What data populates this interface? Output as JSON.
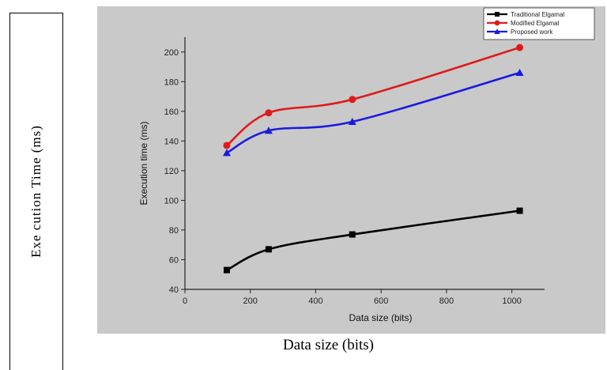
{
  "outer": {
    "left_label": "Exe cution Time (ms)",
    "bottom_label": "Data size (bits)"
  },
  "chart_data": {
    "type": "line",
    "xlabel": "Data size (bits)",
    "ylabel": "Execution time (ms)",
    "xlim": [
      0,
      1100
    ],
    "ylim": [
      40,
      210
    ],
    "xticks": [
      0,
      200,
      400,
      600,
      800,
      1000
    ],
    "yticks": [
      40,
      60,
      80,
      100,
      120,
      140,
      160,
      180,
      200
    ],
    "legend_placement": "top-right",
    "grid": false,
    "series": [
      {
        "name": "Traditional Elgamal",
        "color": "#000000",
        "marker": "square",
        "x": [
          128,
          256,
          512,
          1024
        ],
        "y": [
          53,
          67,
          77,
          93
        ]
      },
      {
        "name": "Modified Elgamal",
        "color": "#e01a1a",
        "marker": "circle",
        "x": [
          128,
          256,
          512,
          1024
        ],
        "y": [
          137,
          159,
          168,
          203
        ]
      },
      {
        "name": "Proposed work",
        "color": "#1a1ae0",
        "marker": "triangle",
        "x": [
          128,
          256,
          512,
          1024
        ],
        "y": [
          132,
          147,
          153,
          186
        ]
      }
    ]
  }
}
